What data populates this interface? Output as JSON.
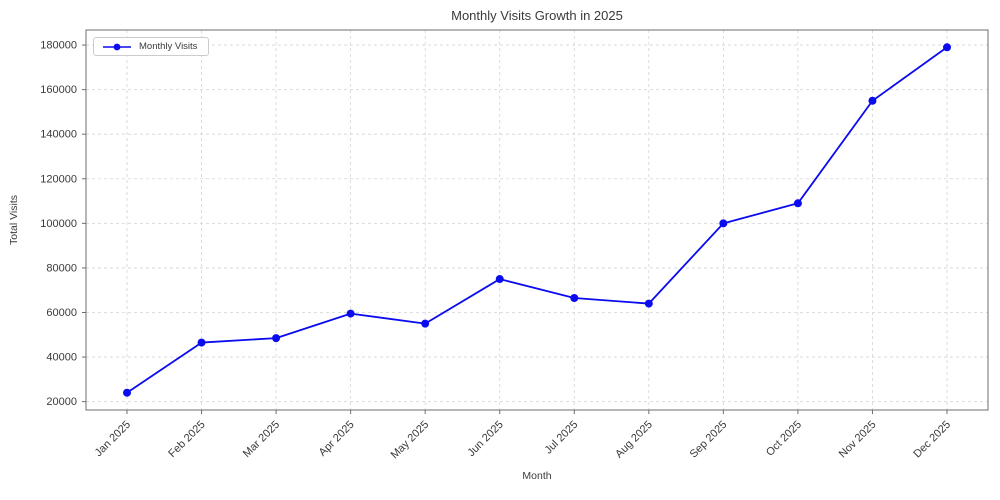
{
  "chart_data": {
    "type": "line",
    "title": "Monthly Visits Growth in 2025",
    "xlabel": "Month",
    "ylabel": "Total Visits",
    "legend_label": "Monthly Visits",
    "legend_position": "upper left",
    "categories": [
      "Jan 2025",
      "Feb 2025",
      "Mar 2025",
      "Apr 2025",
      "May 2025",
      "Jun 2025",
      "Jul 2025",
      "Aug 2025",
      "Sep 2025",
      "Oct 2025",
      "Nov 2025",
      "Dec 2025"
    ],
    "values": [
      24000,
      46500,
      48500,
      59500,
      55000,
      75000,
      66500,
      64000,
      100000,
      109000,
      155000,
      179000
    ],
    "yticks": [
      20000,
      40000,
      60000,
      80000,
      100000,
      120000,
      140000,
      160000,
      180000
    ],
    "ylim": [
      16250,
      186750
    ],
    "xlim_pad": 0.55,
    "grid": true,
    "grid_style": "dashed",
    "line_color": "#0b0bf0",
    "marker": "circle",
    "grid_color": "#d3d3d3",
    "spine_color": "#6e6e6e",
    "text_color": "#3a3a3a"
  }
}
